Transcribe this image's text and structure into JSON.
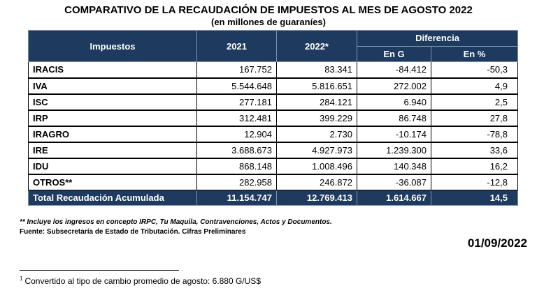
{
  "title": "COMPARATIVO DE LA RECAUDACIÓN DE IMPUESTOS AL MES DE AGOSTO 2022",
  "subtitle": "(en millones de guaraníes)",
  "header": {
    "impuestos": "Impuestos",
    "y2021": "2021",
    "y2022": "2022*",
    "diferencia": "Diferencia",
    "en_g": "En G",
    "en_pct": "En %"
  },
  "rows": [
    {
      "name": "IRACIS",
      "v2021": "167.752",
      "v2022": "83.341",
      "dif_g": "-84.412",
      "dif_pct": "-50,3"
    },
    {
      "name": "IVA",
      "v2021": "5.544.648",
      "v2022": "5.816.651",
      "dif_g": "272.002",
      "dif_pct": "4,9"
    },
    {
      "name": "ISC",
      "v2021": "277.181",
      "v2022": "284.121",
      "dif_g": "6.940",
      "dif_pct": "2,5"
    },
    {
      "name": "IRP",
      "v2021": "312.481",
      "v2022": "399.229",
      "dif_g": "86.748",
      "dif_pct": "27,8"
    },
    {
      "name": "IRAGRO",
      "v2021": "12.904",
      "v2022": "2.730",
      "dif_g": "-10.174",
      "dif_pct": "-78,8"
    },
    {
      "name": "IRE",
      "v2021": "3.688.673",
      "v2022": "4.927.973",
      "dif_g": "1.239.300",
      "dif_pct": "33,6"
    },
    {
      "name": "IDU",
      "v2021": "868.148",
      "v2022": "1.008.496",
      "dif_g": "140.348",
      "dif_pct": "16,2"
    },
    {
      "name": "OTROS**",
      "v2021": "282.958",
      "v2022": "246.872",
      "dif_g": "-36.087",
      "dif_pct": "-12,8"
    }
  ],
  "total": {
    "name": "Total Recaudación Acumulada",
    "v2021": "11.154.747",
    "v2022": "12.769.413",
    "dif_g": "1.614.667",
    "dif_pct": "14,5"
  },
  "notes": {
    "note1": "** Incluye los ingresos en concepto IRPC, Tu Maquila, Contravenciones, Actos y Documentos.",
    "note2": "Fuente: Subsecretaría de Estado de Tributación. Cifras Preliminares"
  },
  "date": "01/09/2022",
  "footnote": {
    "marker": "1",
    "text": "Convertido al tipo de cambio promedio de agosto: 6.880 G/US$"
  },
  "colors": {
    "header_bg": "#1f3a5f",
    "header_text": "#ffffff"
  }
}
